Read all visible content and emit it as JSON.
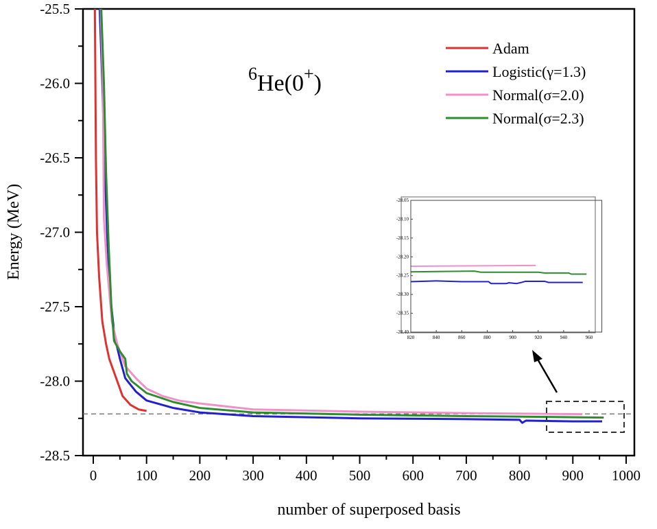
{
  "chart_data": {
    "type": "line",
    "title": "6He(0+)",
    "title_parts": {
      "mass": "6",
      "symbol": "He(0",
      "sup": "+",
      "close": ")"
    },
    "xlabel": "number of superposed basis",
    "ylabel": "Energy (MeV)",
    "xlim": [
      0,
      1000
    ],
    "ylim": [
      -28.5,
      -25.5
    ],
    "xticks": [
      "0",
      "100",
      "200",
      "300",
      "400",
      "500",
      "600",
      "700",
      "800",
      "900",
      "1000"
    ],
    "yticks": [
      "-25.5",
      "-26.0",
      "-26.5",
      "-27.0",
      "-27.5",
      "-28.0",
      "-28.5"
    ],
    "legend_position": "top-right",
    "reference_line": -28.22,
    "series": [
      {
        "name": "Adam",
        "color": "#e03030",
        "points": [
          [
            3,
            -25.5
          ],
          [
            5,
            -26.5
          ],
          [
            7,
            -27.0
          ],
          [
            11,
            -27.3
          ],
          [
            17,
            -27.6
          ],
          [
            24,
            -27.75
          ],
          [
            30,
            -27.85
          ],
          [
            38,
            -27.93
          ],
          [
            45,
            -28.0
          ],
          [
            55,
            -28.1
          ],
          [
            70,
            -28.16
          ],
          [
            85,
            -28.19
          ],
          [
            100,
            -28.2
          ]
        ]
      },
      {
        "name": "Logistic(γ=1.3)",
        "color": "#2020d0",
        "points": [
          [
            12,
            -25.5
          ],
          [
            17,
            -26.0
          ],
          [
            21,
            -26.5
          ],
          [
            26,
            -27.0
          ],
          [
            31,
            -27.4
          ],
          [
            40,
            -27.7
          ],
          [
            50,
            -27.85
          ],
          [
            60,
            -27.98
          ],
          [
            80,
            -28.07
          ],
          [
            100,
            -28.13
          ],
          [
            150,
            -28.18
          ],
          [
            200,
            -28.21
          ],
          [
            300,
            -28.235
          ],
          [
            500,
            -28.25
          ],
          [
            700,
            -28.255
          ],
          [
            800,
            -28.26
          ],
          [
            805,
            -28.28
          ],
          [
            812,
            -28.265
          ],
          [
            900,
            -28.27
          ],
          [
            955,
            -28.27
          ]
        ]
      },
      {
        "name": "Normal(σ=2.0)",
        "color": "#f090c8",
        "points": [
          [
            14,
            -25.5
          ],
          [
            18,
            -26.0
          ],
          [
            20,
            -26.9
          ],
          [
            25,
            -27.2
          ],
          [
            35,
            -27.6
          ],
          [
            45,
            -27.75
          ],
          [
            60,
            -27.9
          ],
          [
            80,
            -27.98
          ],
          [
            100,
            -28.05
          ],
          [
            130,
            -28.1
          ],
          [
            160,
            -28.13
          ],
          [
            200,
            -28.15
          ],
          [
            300,
            -28.19
          ],
          [
            500,
            -28.205
          ],
          [
            700,
            -28.215
          ],
          [
            918,
            -28.222
          ]
        ]
      },
      {
        "name": "Normal(σ=2.3)",
        "color": "#2e8b2e",
        "points": [
          [
            15,
            -25.5
          ],
          [
            20,
            -26.0
          ],
          [
            24,
            -26.6
          ],
          [
            29,
            -27.1
          ],
          [
            34,
            -27.5
          ],
          [
            39,
            -27.73
          ],
          [
            50,
            -27.8
          ],
          [
            60,
            -27.85
          ],
          [
            63,
            -27.95
          ],
          [
            72,
            -28.0
          ],
          [
            100,
            -28.08
          ],
          [
            150,
            -28.14
          ],
          [
            200,
            -28.18
          ],
          [
            300,
            -28.21
          ],
          [
            500,
            -28.225
          ],
          [
            700,
            -28.235
          ],
          [
            850,
            -28.24
          ],
          [
            958,
            -28.245
          ]
        ]
      }
    ],
    "inset": {
      "xlim": [
        820,
        970
      ],
      "ylim": [
        -28.4,
        -28.05
      ],
      "xticks": [
        "820",
        "840",
        "860",
        "880",
        "900",
        "920",
        "940",
        "960"
      ],
      "yticks": [
        "-28.05",
        "-28.10",
        "-28.15",
        "-28.20",
        "-28.25",
        "-28.30",
        "-28.35",
        "-28.40"
      ],
      "series": [
        {
          "name": "Normal(σ=2.0)",
          "color": "#f090c8",
          "points": [
            [
              820,
              -28.225
            ],
            [
              918,
              -28.223
            ]
          ]
        },
        {
          "name": "Normal(σ=2.3)",
          "color": "#2e8b2e",
          "points": [
            [
              820,
              -28.24
            ],
            [
              870,
              -28.238
            ],
            [
              875,
              -28.241
            ],
            [
              920,
              -28.241
            ],
            [
              925,
              -28.243
            ],
            [
              944,
              -28.243
            ],
            [
              946,
              -28.246
            ],
            [
              958,
              -28.246
            ]
          ]
        },
        {
          "name": "Logistic(γ=1.3)",
          "color": "#2020d0",
          "points": [
            [
              820,
              -28.266
            ],
            [
              840,
              -28.264
            ],
            [
              860,
              -28.266
            ],
            [
              881,
              -28.266
            ],
            [
              883,
              -28.271
            ],
            [
              895,
              -28.271
            ],
            [
              897,
              -28.269
            ],
            [
              903,
              -28.271
            ],
            [
              907,
              -28.268
            ],
            [
              910,
              -28.265
            ],
            [
              925,
              -28.265
            ],
            [
              928,
              -28.268
            ],
            [
              955,
              -28.268
            ]
          ]
        }
      ]
    }
  }
}
